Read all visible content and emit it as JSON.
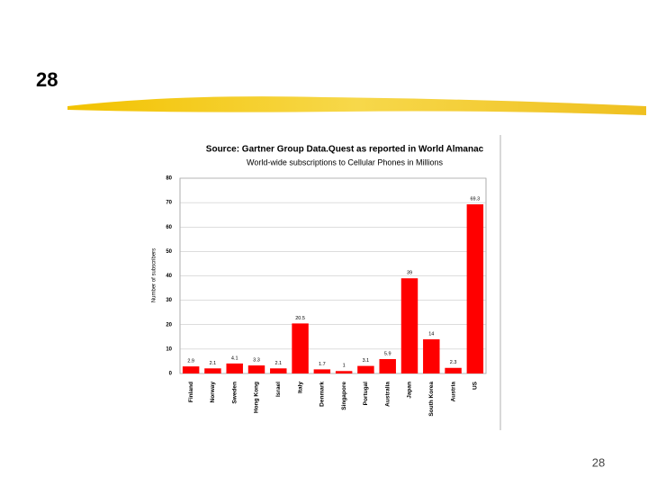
{
  "slide": {
    "title": "28",
    "page_number": "28"
  },
  "chart_data": {
    "type": "bar",
    "title": "Source: Gartner Group Data.Quest as reported in World Almanac",
    "subtitle": "World-wide subscriptions to Cellular Phones in Millions",
    "y_label": "Number of subscribers",
    "categories": [
      "Finland",
      "Norway",
      "Sweden",
      "Hong Kong",
      "Israel",
      "Italy",
      "Denmark",
      "Singapore",
      "Portugal",
      "Australia",
      "Japan",
      "South Korea",
      "Austria",
      "US"
    ],
    "values": [
      2.9,
      2.1,
      4.1,
      3.3,
      2.1,
      20.5,
      1.7,
      1,
      3.1,
      5.9,
      39,
      14,
      2.3,
      69.3
    ],
    "color": "#ff0000",
    "ylim": [
      0,
      80
    ],
    "yticks": [
      0,
      10,
      20,
      30,
      40,
      50,
      60,
      70,
      80
    ],
    "grid": true
  }
}
